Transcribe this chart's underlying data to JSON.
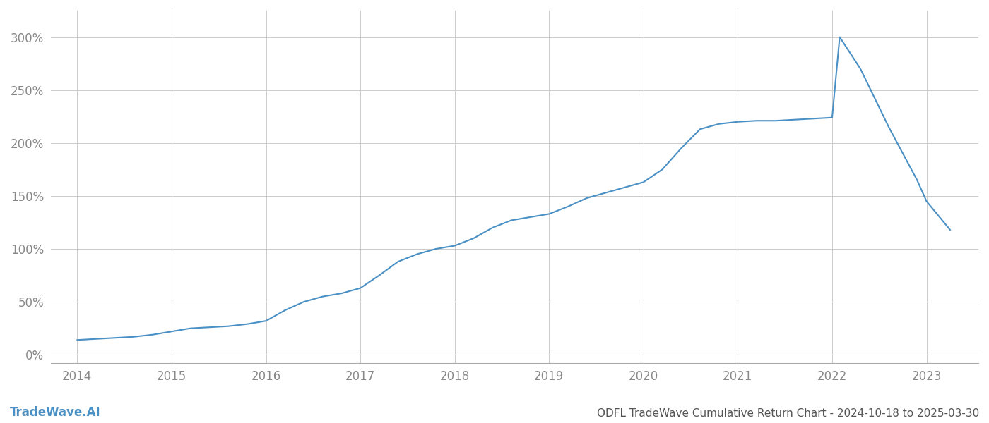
{
  "title": "ODFL TradeWave Cumulative Return Chart - 2024-10-18 to 2025-03-30",
  "watermark": "TradeWave.AI",
  "line_color": "#4a90c4",
  "background_color": "#ffffff",
  "grid_color": "#cccccc",
  "x_values": [
    2014.0,
    2014.2,
    2014.4,
    2014.6,
    2014.8,
    2015.0,
    2015.2,
    2015.4,
    2015.6,
    2015.8,
    2016.0,
    2016.2,
    2016.4,
    2016.6,
    2016.8,
    2017.0,
    2017.2,
    2017.4,
    2017.6,
    2017.8,
    2018.0,
    2018.2,
    2018.4,
    2018.6,
    2018.8,
    2019.0,
    2019.2,
    2019.4,
    2019.6,
    2019.8,
    2020.0,
    2020.2,
    2020.4,
    2020.6,
    2020.8,
    2021.0,
    2021.2,
    2021.4,
    2021.6,
    2021.8,
    2022.0,
    2022.08,
    2022.3,
    2022.6,
    2022.9,
    2023.0,
    2023.25
  ],
  "y_values": [
    14,
    15,
    16,
    17,
    19,
    22,
    25,
    26,
    27,
    29,
    32,
    42,
    50,
    55,
    58,
    63,
    75,
    88,
    95,
    100,
    103,
    110,
    120,
    127,
    130,
    133,
    140,
    148,
    153,
    158,
    163,
    175,
    195,
    213,
    218,
    220,
    221,
    221,
    222,
    223,
    224,
    300,
    270,
    215,
    165,
    145,
    118
  ],
  "x_tick_labels": [
    "2014",
    "2015",
    "2016",
    "2017",
    "2018",
    "2019",
    "2020",
    "2021",
    "2022",
    "2023"
  ],
  "x_tick_positions": [
    2014,
    2015,
    2016,
    2017,
    2018,
    2019,
    2020,
    2021,
    2022,
    2023
  ],
  "y_ticks": [
    0,
    50,
    100,
    150,
    200,
    250,
    300
  ],
  "ylim": [
    -8,
    325
  ],
  "xlim": [
    2013.72,
    2023.55
  ],
  "line_width": 1.5,
  "title_fontsize": 11,
  "tick_fontsize": 12,
  "watermark_fontsize": 12,
  "title_color": "#555555",
  "tick_color": "#888888",
  "watermark_color": "#4a90c4",
  "spine_color": "#aaaaaa"
}
